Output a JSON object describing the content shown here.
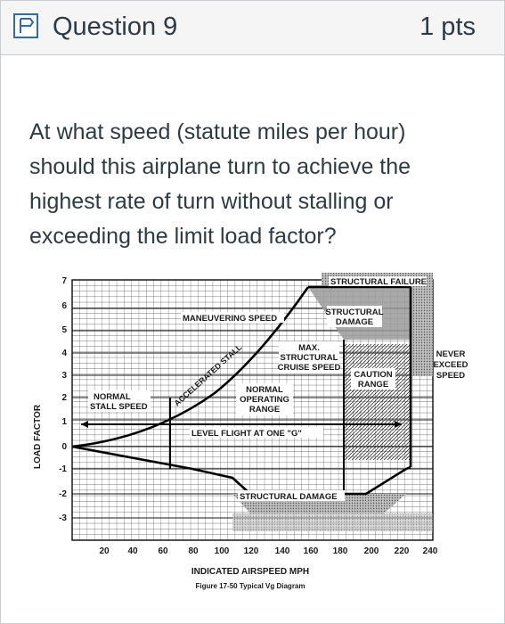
{
  "question": {
    "title": "Question 9",
    "points": "1 pts",
    "text": "At what speed (statute miles per hour) should this airplane turn to achieve the highest rate of turn without stalling or exceeding the limit load factor?",
    "flag_icon": "flag-outline-icon"
  },
  "figure": {
    "ylabel": "LOAD FACTOR",
    "xlabel": "INDICATED AIRSPEED MPH",
    "caption": "Figure 17-50  Typical Vg Diagram",
    "y_ticks": [
      "7",
      "6",
      "5",
      "4",
      "3",
      "2",
      "1",
      "0",
      "-1",
      "-2",
      "-3"
    ],
    "x_ticks": [
      "20",
      "40",
      "60",
      "80",
      "100",
      "120",
      "140",
      "160",
      "180",
      "200",
      "220",
      "240"
    ],
    "labels": {
      "structural_failure": "STRUCTURAL FAILURE",
      "structural_damage_top_1": "STRUCTURAL",
      "structural_damage_top_2": "DAMAGE",
      "maneuvering_speed": "MANEUVERING SPEED",
      "max_cruise_1": "MAX.",
      "max_cruise_2": "STRUCTURAL",
      "max_cruise_3": "CRUISE SPEED",
      "never_exceed_1": "NEVER",
      "never_exceed_2": "EXCEED",
      "never_exceed_3": "SPEED",
      "caution_1": "CAUTION",
      "caution_2": "RANGE",
      "accelerated_stall": "ACCELERATED STALL",
      "normal_stall_1": "NORMAL",
      "normal_stall_2": "STALL SPEED",
      "normal_op_1": "NORMAL",
      "normal_op_2": "OPERATING",
      "normal_op_3": "RANGE",
      "level_flight": "LEVEL FLIGHT AT ONE \"G\"",
      "structural_damage_bottom": "STRUCTURAL DAMAGE"
    }
  },
  "colors": {
    "header_bg": "#f5f5f5",
    "border": "#c7cdd1",
    "text": "#2d3b45",
    "chart_ink": "#1a1a1a"
  }
}
